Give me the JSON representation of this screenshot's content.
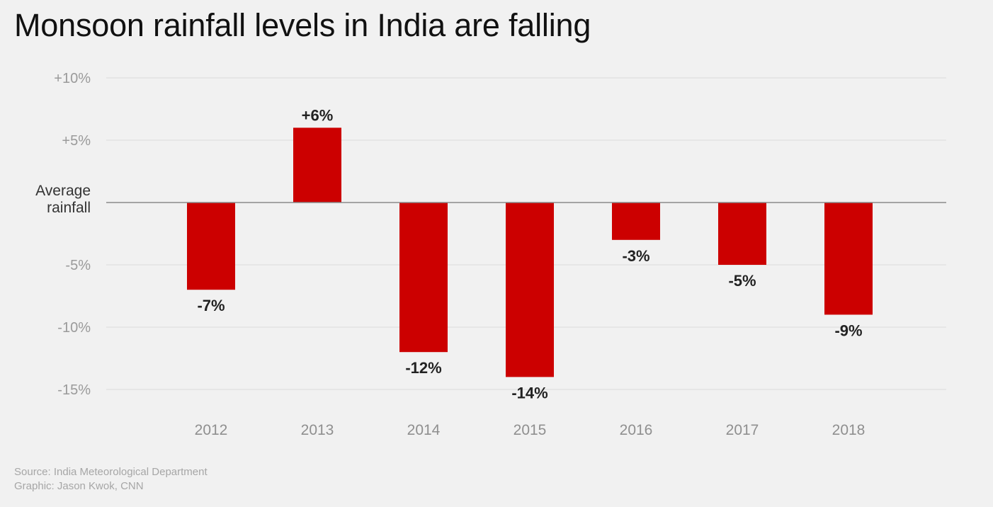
{
  "title": "Monsoon rainfall levels in India are falling",
  "footer": {
    "source": "Source: India Meteorological Department",
    "credit": "Graphic: Jason Kwok, CNN"
  },
  "colors": {
    "background": "#f1f1f1",
    "bar": "#cc0000",
    "baseline": "#8a8a8a",
    "grid": "#dcdcdc"
  },
  "chart_data": {
    "type": "bar",
    "categories": [
      "2012",
      "2013",
      "2014",
      "2015",
      "2016",
      "2017",
      "2018"
    ],
    "values": [
      -7,
      6,
      -12,
      -14,
      -3,
      -5,
      -9
    ],
    "data_labels": [
      "-7%",
      "+6%",
      "-12%",
      "-14%",
      "-3%",
      "-5%",
      "-9%"
    ],
    "y_ticks": [
      {
        "value": 10,
        "label": "+10%"
      },
      {
        "value": 5,
        "label": "+5%"
      },
      {
        "value": 0,
        "label": "Average rainfall",
        "lines": [
          "Average",
          "rainfall"
        ]
      },
      {
        "value": -5,
        "label": "-5%"
      },
      {
        "value": -10,
        "label": "-10%"
      },
      {
        "value": -15,
        "label": "-15%"
      }
    ],
    "ylim": [
      -15,
      10
    ],
    "grid": true,
    "xlabel": "",
    "ylabel": ""
  }
}
